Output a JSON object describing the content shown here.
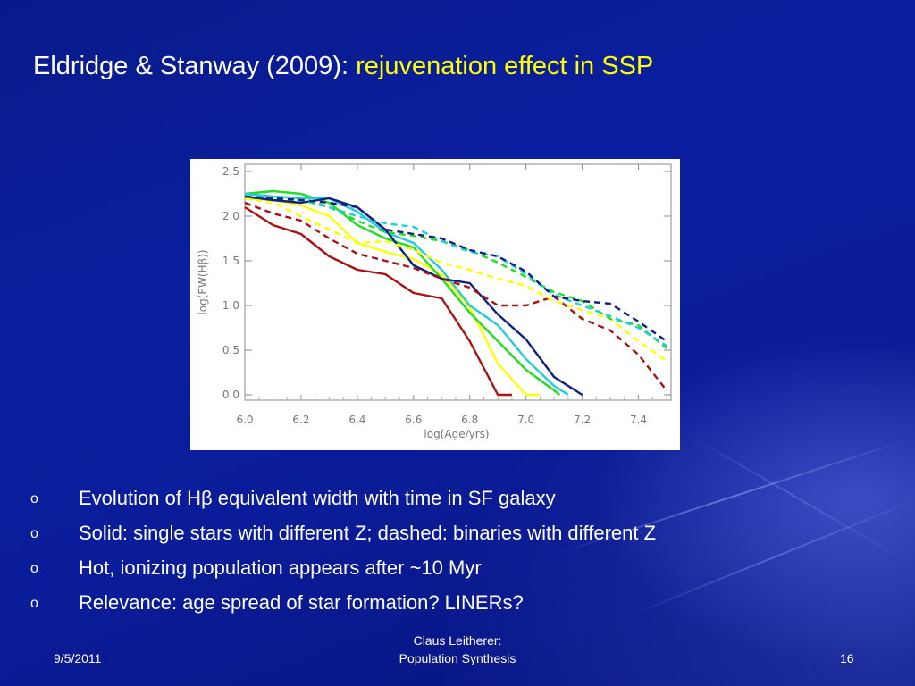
{
  "slide": {
    "title_main": "Eldridge & Stanway (2009): ",
    "title_accent": "rejuvenation effect in SSP",
    "bullets": [
      "Evolution of Hβ equivalent width with time in SF galaxy",
      "Solid: single stars with different Z; dashed: binaries with different Z",
      "Hot, ionizing population appears after ~10 Myr",
      "Relevance: age spread of star formation? LINERs?"
    ],
    "bullet_marker": "o",
    "footer": {
      "date": "9/5/2011",
      "author_line1": "Claus Leitherer:",
      "author_line2": "Population Synthesis",
      "page": "16"
    },
    "colors": {
      "title_accent": "#ffff00",
      "background": "#0a1fa0"
    }
  },
  "chart_data": {
    "type": "line",
    "xlabel": "log(Age/yrs)",
    "ylabel": "log(EW(Hβ))",
    "xlim": [
      6.0,
      7.5
    ],
    "ylim": [
      0.0,
      2.5
    ],
    "xticks": [
      "6.0",
      "6.2",
      "6.4",
      "6.6",
      "6.8",
      "7.0",
      "7.2",
      "7.4"
    ],
    "yticks": [
      "0.0",
      "0.5",
      "1.0",
      "1.5",
      "2.0",
      "2.5"
    ],
    "grid": false,
    "legend": "none",
    "series": [
      {
        "style": "solid",
        "color": "#aa1111",
        "x": [
          6.0,
          6.1,
          6.2,
          6.3,
          6.4,
          6.5,
          6.6,
          6.7,
          6.8,
          6.9,
          6.95
        ],
        "y": [
          2.1,
          1.9,
          1.8,
          1.55,
          1.4,
          1.35,
          1.14,
          1.08,
          0.6,
          0.0,
          0.0
        ]
      },
      {
        "style": "solid",
        "color": "#ffff00",
        "x": [
          6.0,
          6.1,
          6.2,
          6.3,
          6.4,
          6.5,
          6.6,
          6.7,
          6.8,
          6.9,
          7.0,
          7.05
        ],
        "y": [
          2.2,
          2.18,
          2.12,
          2.0,
          1.7,
          1.6,
          1.52,
          1.35,
          0.98,
          0.35,
          0.0,
          0.0
        ]
      },
      {
        "style": "solid",
        "color": "#22dd22",
        "x": [
          6.0,
          6.1,
          6.2,
          6.3,
          6.4,
          6.5,
          6.6,
          6.7,
          6.8,
          6.9,
          7.0,
          7.1,
          7.12
        ],
        "y": [
          2.25,
          2.28,
          2.25,
          2.15,
          1.9,
          1.75,
          1.65,
          1.3,
          0.92,
          0.6,
          0.28,
          0.05,
          0.0
        ]
      },
      {
        "style": "solid",
        "color": "#22ccdd",
        "x": [
          6.0,
          6.1,
          6.2,
          6.3,
          6.4,
          6.5,
          6.6,
          6.7,
          6.8,
          6.9,
          7.0,
          7.1,
          7.15
        ],
        "y": [
          2.25,
          2.22,
          2.2,
          2.2,
          2.05,
          1.82,
          1.7,
          1.4,
          1.0,
          0.78,
          0.4,
          0.1,
          0.0
        ]
      },
      {
        "style": "solid",
        "color": "#102080",
        "x": [
          6.0,
          6.1,
          6.2,
          6.3,
          6.4,
          6.5,
          6.6,
          6.7,
          6.8,
          6.9,
          7.0,
          7.1,
          7.2
        ],
        "y": [
          2.22,
          2.18,
          2.15,
          2.2,
          2.1,
          1.85,
          1.45,
          1.3,
          1.25,
          0.9,
          0.62,
          0.2,
          0.0
        ]
      },
      {
        "style": "dashed",
        "color": "#aa1111",
        "x": [
          6.0,
          6.1,
          6.2,
          6.3,
          6.4,
          6.5,
          6.6,
          6.7,
          6.8,
          6.9,
          7.0,
          7.1,
          7.2,
          7.3,
          7.4,
          7.5
        ],
        "y": [
          2.15,
          2.03,
          1.95,
          1.75,
          1.58,
          1.5,
          1.42,
          1.3,
          1.2,
          1.0,
          1.0,
          1.1,
          0.85,
          0.72,
          0.45,
          0.05
        ]
      },
      {
        "style": "dashed",
        "color": "#ffff00",
        "x": [
          6.0,
          6.1,
          6.2,
          6.3,
          6.4,
          6.5,
          6.6,
          6.7,
          6.8,
          6.9,
          7.0,
          7.1,
          7.2,
          7.3,
          7.4,
          7.5
        ],
        "y": [
          2.2,
          2.15,
          2.0,
          1.85,
          1.7,
          1.72,
          1.62,
          1.48,
          1.4,
          1.3,
          1.22,
          1.05,
          0.95,
          0.85,
          0.6,
          0.38
        ]
      },
      {
        "style": "dashed",
        "color": "#22dd22",
        "x": [
          6.0,
          6.1,
          6.2,
          6.3,
          6.4,
          6.5,
          6.6,
          6.7,
          6.8,
          6.9,
          7.0,
          7.1,
          7.2,
          7.3,
          7.4,
          7.5
        ],
        "y": [
          2.22,
          2.2,
          2.18,
          2.1,
          1.95,
          1.82,
          1.78,
          1.72,
          1.62,
          1.48,
          1.32,
          1.15,
          1.05,
          0.85,
          0.78,
          0.52
        ]
      },
      {
        "style": "dashed",
        "color": "#22ccdd",
        "x": [
          6.0,
          6.1,
          6.2,
          6.3,
          6.4,
          6.5,
          6.6,
          6.7,
          6.8,
          6.9,
          7.0,
          7.1,
          7.2,
          7.3,
          7.4,
          7.5
        ],
        "y": [
          2.25,
          2.22,
          2.2,
          2.1,
          2.0,
          1.92,
          1.88,
          1.72,
          1.6,
          1.55,
          1.35,
          1.12,
          1.0,
          0.88,
          0.75,
          0.55
        ]
      },
      {
        "style": "dashed",
        "color": "#102080",
        "x": [
          6.0,
          6.1,
          6.2,
          6.3,
          6.4,
          6.5,
          6.6,
          6.7,
          6.8,
          6.9,
          7.0,
          7.1,
          7.2,
          7.3,
          7.4,
          7.5
        ],
        "y": [
          2.22,
          2.2,
          2.18,
          2.15,
          2.1,
          1.85,
          1.8,
          1.75,
          1.62,
          1.55,
          1.38,
          1.1,
          1.05,
          1.02,
          0.82,
          0.6
        ]
      }
    ]
  }
}
